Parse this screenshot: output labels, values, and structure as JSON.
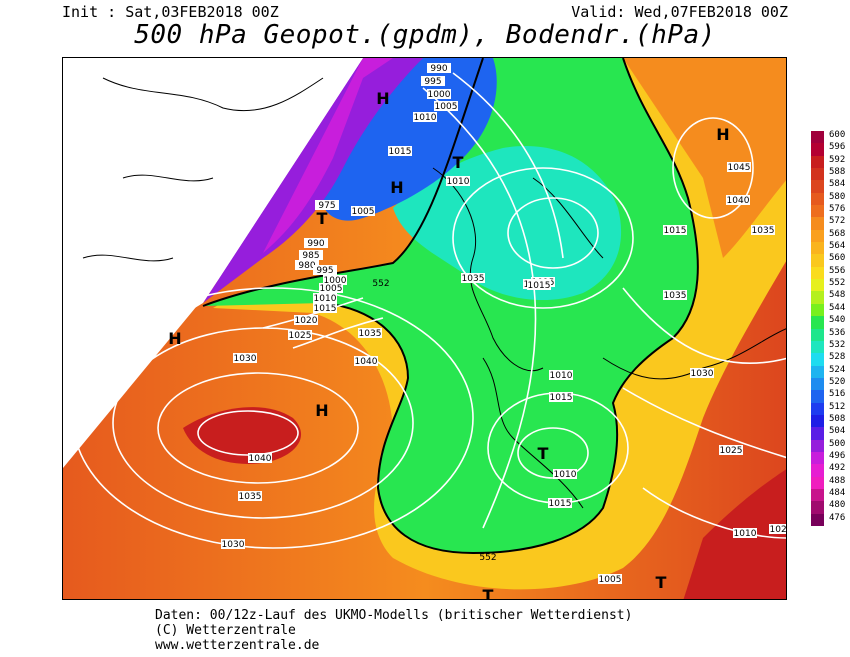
{
  "header": {
    "init_label": "Init : Sat,03FEB2018 00Z",
    "valid_label": "Valid: Wed,07FEB2018 00Z",
    "title": "500 hPa Geopot.(gpdm), Bodendr.(hPa)"
  },
  "legend": {
    "values": [
      "600",
      "596",
      "592",
      "588",
      "584",
      "580",
      "576",
      "572",
      "568",
      "564",
      "560",
      "556",
      "552",
      "548",
      "544",
      "540",
      "536",
      "532",
      "528",
      "524",
      "520",
      "516",
      "512",
      "508",
      "504",
      "500",
      "496",
      "492",
      "488",
      "484",
      "480",
      "476"
    ],
    "colors": [
      "#a0003c",
      "#b40032",
      "#c81e1e",
      "#d2321e",
      "#dc461e",
      "#e65a1e",
      "#ee6e1e",
      "#f58c1e",
      "#faa01e",
      "#fab41e",
      "#fac81e",
      "#fadc1e",
      "#e6f01e",
      "#b4f01e",
      "#78f01e",
      "#28e650",
      "#1ee68c",
      "#1ee6be",
      "#1edcf0",
      "#1eb4f0",
      "#1e8cf0",
      "#1e64f0",
      "#1e3cf0",
      "#1e1ee6",
      "#5a1ee6",
      "#961edc",
      "#c81edc",
      "#e61ed2",
      "#f01ebe",
      "#c8148c",
      "#a00a6e",
      "#78005a"
    ]
  },
  "map": {
    "isobar_labels": [
      "990",
      "995",
      "1000",
      "1005",
      "1010",
      "1015",
      "1010",
      "1005",
      "990",
      "985",
      "980",
      "975",
      "995",
      "1000",
      "1005",
      "1010",
      "1015",
      "1020",
      "1025",
      "1030",
      "1035",
      "1040",
      "1040",
      "1035",
      "1030",
      "1035",
      "1040",
      "1045",
      "1035",
      "1030",
      "1025",
      "1020",
      "1015",
      "1010",
      "1015",
      "1010",
      "1015",
      "1005",
      "1010",
      "1015",
      "1035",
      "1030",
      "1010",
      "1015"
    ],
    "contour_labels": [
      "552",
      "552"
    ],
    "pressure_centers": [
      "H",
      "H",
      "H",
      "H",
      "H",
      "T",
      "T",
      "T",
      "T",
      "T"
    ]
  },
  "footer": {
    "line1": "Daten: 00/12z-Lauf des UKMO-Modells (britischer Wetterdienst)",
    "line2": "(C) Wetterzentrale",
    "line3": "www.wetterzentrale.de"
  }
}
